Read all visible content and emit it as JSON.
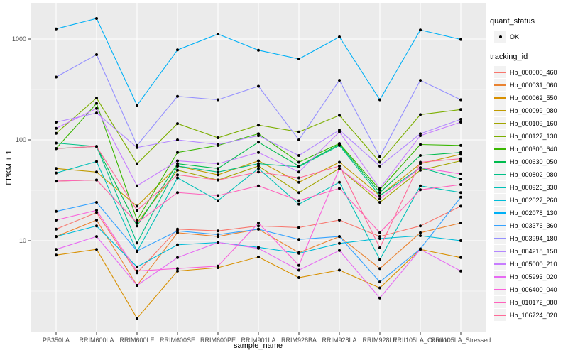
{
  "chart_data": {
    "type": "line",
    "title": "",
    "xlabel": "sample_name",
    "ylabel": "FPKM + 1",
    "x_categories": [
      "PB350LA",
      "RRIM600LA",
      "RRIM600LE",
      "RRIM600SE",
      "RRIM600PE",
      "RRIM901LA",
      "RRIM928BA",
      "RRIM928LA",
      "RRIM928LE",
      "RRII105LA_Control",
      "RRII105LA_Stressed"
    ],
    "y_axis": {
      "scale": "log10",
      "tick_labels": [
        "10",
        "100",
        "1000"
      ],
      "ticks": [
        10,
        100,
        1000
      ],
      "minor_breaks": [
        3.162,
        31.62,
        316.2
      ],
      "range": [
        1.2,
        2100
      ]
    },
    "grid": true,
    "legend_position": "right",
    "legends": {
      "quant_status": {
        "title": "quant_status",
        "items": [
          {
            "label": "OK",
            "marker": "black-point"
          }
        ]
      },
      "tracking_id": {
        "title": "tracking_id"
      }
    },
    "series": [
      {
        "name": "Hb_000000_460",
        "color": "#F8766D",
        "values": [
          13,
          19,
          4.8,
          13,
          12.5,
          14,
          13.5,
          16,
          11,
          14,
          22
        ]
      },
      {
        "name": "Hb_000031_060",
        "color": "#EA8331",
        "values": [
          11,
          16,
          3.6,
          12,
          11,
          13,
          7.6,
          11,
          5.3,
          12,
          15
        ]
      },
      {
        "name": "Hb_000062_550",
        "color": "#D89000",
        "values": [
          7.2,
          8.2,
          1.7,
          5.0,
          5.4,
          6.9,
          4.3,
          5.1,
          3.4,
          8.2,
          6.8
        ]
      },
      {
        "name": "Hb_000099_080",
        "color": "#C09B00",
        "values": [
          52,
          48,
          22,
          55,
          45,
          62,
          38,
          60,
          28,
          58,
          72
        ]
      },
      {
        "name": "Hb_000109_160",
        "color": "#A3A500",
        "values": [
          39,
          40,
          15,
          50,
          40,
          55,
          30,
          52,
          24,
          50,
          62
        ]
      },
      {
        "name": "Hb_000127_130",
        "color": "#7CAE00",
        "values": [
          116,
          260,
          58,
          145,
          105,
          140,
          120,
          175,
          60,
          178,
          200
        ]
      },
      {
        "name": "Hb_000300_640",
        "color": "#39B600",
        "values": [
          82,
          230,
          16,
          75,
          88,
          115,
          60,
          92,
          32,
          90,
          88
        ]
      },
      {
        "name": "Hb_000630_050",
        "color": "#00BB4E",
        "values": [
          82,
          86,
          14,
          58,
          52,
          95,
          55,
          90,
          30,
          70,
          75
        ]
      },
      {
        "name": "Hb_000802_080",
        "color": "#00C087",
        "values": [
          93,
          86,
          9.5,
          55,
          48,
          58,
          54,
          88,
          28,
          53,
          41
        ]
      },
      {
        "name": "Hb_000926_330",
        "color": "#00C0B8",
        "values": [
          47,
          61,
          7.8,
          42,
          25,
          52,
          23,
          38,
          6.5,
          35,
          30
        ]
      },
      {
        "name": "Hb_002027_260",
        "color": "#00BCD8",
        "values": [
          11,
          14,
          5.5,
          9.1,
          9.6,
          8.6,
          7.5,
          9.4,
          10.5,
          11.2,
          10
        ]
      },
      {
        "name": "Hb_002078_130",
        "color": "#00B0F6",
        "values": [
          1260,
          1600,
          220,
          780,
          1120,
          775,
          635,
          1050,
          250,
          1230,
          990
        ]
      },
      {
        "name": "Hb_003376_360",
        "color": "#35A2FF",
        "values": [
          19.5,
          24,
          7.9,
          12.5,
          11.5,
          13,
          10.3,
          11,
          3.9,
          8.3,
          27
        ]
      },
      {
        "name": "Hb_003994_180",
        "color": "#9590FF",
        "values": [
          420,
          700,
          88,
          270,
          250,
          340,
          100,
          390,
          68,
          390,
          250
        ]
      },
      {
        "name": "Hb_004218_150",
        "color": "#B388FF",
        "values": [
          150,
          185,
          84,
          100,
          90,
          110,
          70,
          125,
          55,
          115,
          160
        ]
      },
      {
        "name": "Hb_005000_210",
        "color": "#C77CFF",
        "values": [
          130,
          205,
          35,
          62,
          58,
          75,
          48,
          120,
          33,
          110,
          150
        ]
      },
      {
        "name": "Hb_005993_020",
        "color": "#E76BF3",
        "values": [
          8.2,
          11,
          3.6,
          6.8,
          9.6,
          8.4,
          5.1,
          8.0,
          2.7,
          8.2,
          5.0
        ]
      },
      {
        "name": "Hb_006400_040",
        "color": "#FA62DB",
        "values": [
          16,
          20,
          5.0,
          5.3,
          5.6,
          15,
          5.7,
          52,
          26,
          53,
          46
        ]
      },
      {
        "name": "Hb_010172_080",
        "color": "#FF62BC",
        "values": [
          39,
          40,
          15,
          30,
          28,
          35,
          25,
          33,
          12,
          32,
          36
        ]
      },
      {
        "name": "Hb_106724_020",
        "color": "#FF6A98",
        "values": [
          82,
          86,
          20,
          45,
          40,
          48,
          42,
          55,
          8.5,
          60,
          65
        ]
      }
    ]
  },
  "colors": {
    "panel_bg": "#EBEBEB",
    "grid_major": "#FFFFFF",
    "grid_minor": "#FFFFFF",
    "point": "#000000",
    "axis_text": "#4D4D4D",
    "tick_mark": "#333333",
    "legend_key_bg": "#F2F2F2",
    "background": "#FFFFFF"
  }
}
